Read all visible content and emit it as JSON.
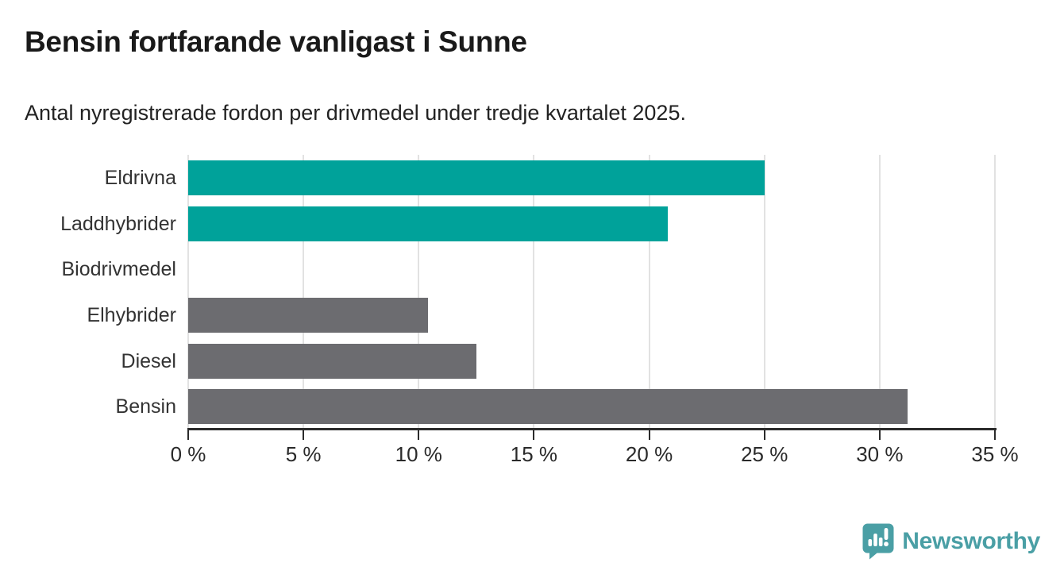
{
  "header": {
    "title": "Bensin fortfarande vanligast i Sunne",
    "subtitle": "Antal nyregistrerade fordon per drivmedel under tredje kvartalet 2025."
  },
  "chart_data": {
    "type": "bar",
    "orientation": "horizontal",
    "title": "Bensin fortfarande vanligast i Sunne",
    "subtitle": "Antal nyregistrerade fordon per drivmedel under tredje kvartalet 2025.",
    "categories": [
      "Eldrivna",
      "Laddhybrider",
      "Biodrivmedel",
      "Elhybrider",
      "Diesel",
      "Bensin"
    ],
    "values": [
      25.0,
      20.8,
      0,
      10.4,
      12.5,
      31.2
    ],
    "unit": "%",
    "xlim": [
      0,
      35
    ],
    "x_ticks": [
      0,
      5,
      10,
      15,
      20,
      25,
      30,
      35
    ],
    "x_tick_labels": [
      "0 %",
      "5 %",
      "10 %",
      "15 %",
      "20 %",
      "25 %",
      "30 %",
      "35 %"
    ],
    "bar_colors": [
      "#00a29a",
      "#00a29a",
      "#6c6c70",
      "#6c6c70",
      "#6c6c70",
      "#6c6c70"
    ],
    "highlight_color": "#00a29a",
    "default_color": "#6c6c70",
    "gridlines": true,
    "gridline_color": "#e2e2e2",
    "axis_color": "#2b2b2b",
    "legend": "none"
  },
  "footer": {
    "brand": "Newsworthy",
    "brand_color": "#4a9fa5",
    "logo_icon": "newsworthy-speech-bubble-chart-icon"
  }
}
